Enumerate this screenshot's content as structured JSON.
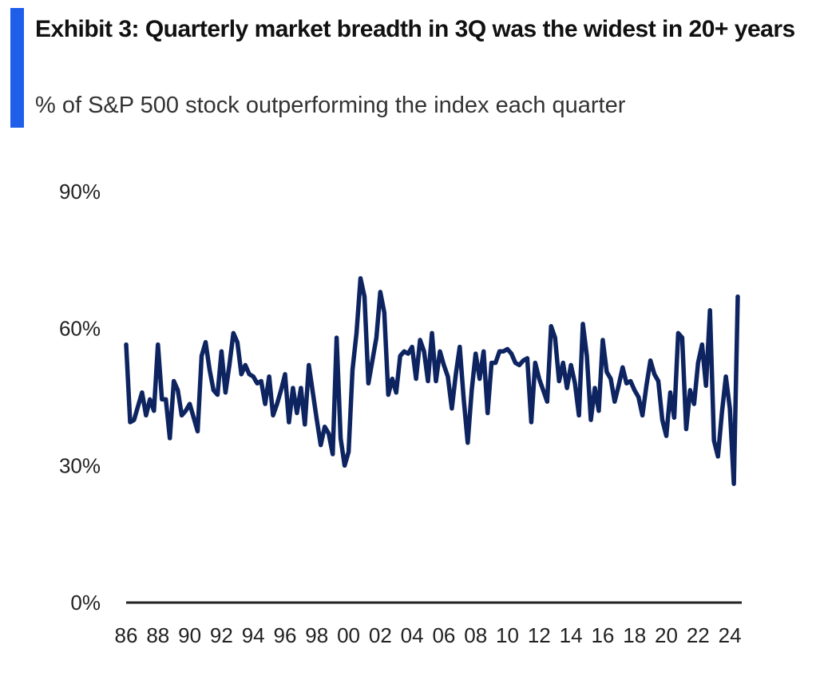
{
  "header": {
    "title": "Exhibit 3: Quarterly market breadth in 3Q was the widest in 20+ years",
    "subtitle": "% of S&P 500 stock outperforming the index each quarter"
  },
  "colors": {
    "accent": "#1f5ee8",
    "line": "#0d2461",
    "axis": "#222222"
  },
  "chart_data": {
    "type": "line",
    "title": "Exhibit 3: Quarterly market breadth in 3Q was the widest in 20+ years",
    "subtitle": "% of S&P 500 stock outperforming the index each quarter",
    "xlabel": "",
    "ylabel": "",
    "ylim": [
      0,
      90
    ],
    "xlim": [
      1986,
      2024.75
    ],
    "y_ticks": [
      0,
      30,
      60,
      90
    ],
    "y_tick_labels": [
      "0%",
      "30%",
      "60%",
      "90%"
    ],
    "x_ticks": [
      1986,
      1988,
      1990,
      1992,
      1994,
      1996,
      1998,
      2000,
      2002,
      2004,
      2006,
      2008,
      2010,
      2012,
      2014,
      2016,
      2018,
      2020,
      2022,
      2024
    ],
    "x_tick_labels": [
      "86",
      "88",
      "90",
      "92",
      "94",
      "96",
      "98",
      "00",
      "02",
      "04",
      "06",
      "08",
      "10",
      "12",
      "14",
      "16",
      "18",
      "20",
      "22",
      "24"
    ],
    "legend": false,
    "grid": false,
    "series": [
      {
        "name": "% of S&P 500 stocks outperforming the index",
        "x_start": 1986,
        "x_step": 0.25,
        "values": [
          56.5,
          39.5,
          40.0,
          43.0,
          46.0,
          41.0,
          44.5,
          42.0,
          56.5,
          44.5,
          44.5,
          36.0,
          48.5,
          46.5,
          41.0,
          42.0,
          43.5,
          40.5,
          37.5,
          54.0,
          57.0,
          51.0,
          46.5,
          45.5,
          55.0,
          46.0,
          52.0,
          59.0,
          57.0,
          50.0,
          52.0,
          50.0,
          49.5,
          48.0,
          48.5,
          43.5,
          49.5,
          41.0,
          43.5,
          46.5,
          50.0,
          39.5,
          47.0,
          41.5,
          47.0,
          39.0,
          52.0,
          46.0,
          40.0,
          34.5,
          38.5,
          37.0,
          32.5,
          58.0,
          36.0,
          30.0,
          33.0,
          51.0,
          59.0,
          71.0,
          67.0,
          48.0,
          53.0,
          58.0,
          68.0,
          63.5,
          45.5,
          49.0,
          46.0,
          54.0,
          55.0,
          54.5,
          56.0,
          49.0,
          57.5,
          55.0,
          48.5,
          59.0,
          48.5,
          55.0,
          52.0,
          49.5,
          42.5,
          50.0,
          56.0,
          44.5,
          35.0,
          46.5,
          54.5,
          49.0,
          55.0,
          41.5,
          52.5,
          52.5,
          55.0,
          55.0,
          55.5,
          54.5,
          52.5,
          52.0,
          53.0,
          53.5,
          39.5,
          52.5,
          49.0,
          46.5,
          44.0,
          60.5,
          58.0,
          48.5,
          52.5,
          47.0,
          52.0,
          48.0,
          41.0,
          61.0,
          54.0,
          40.0,
          47.0,
          42.0,
          57.5,
          50.5,
          49.0,
          44.0,
          47.5,
          51.5,
          48.0,
          48.5,
          46.5,
          45.0,
          41.0,
          47.5,
          53.0,
          50.0,
          48.5,
          40.0,
          36.5,
          46.0,
          40.5,
          59.0,
          58.0,
          38.0,
          46.5,
          43.5,
          52.5,
          56.5,
          47.5,
          64.0,
          35.5,
          32.0,
          41.5,
          49.5,
          42.5,
          26.0,
          67.0
        ]
      }
    ]
  }
}
